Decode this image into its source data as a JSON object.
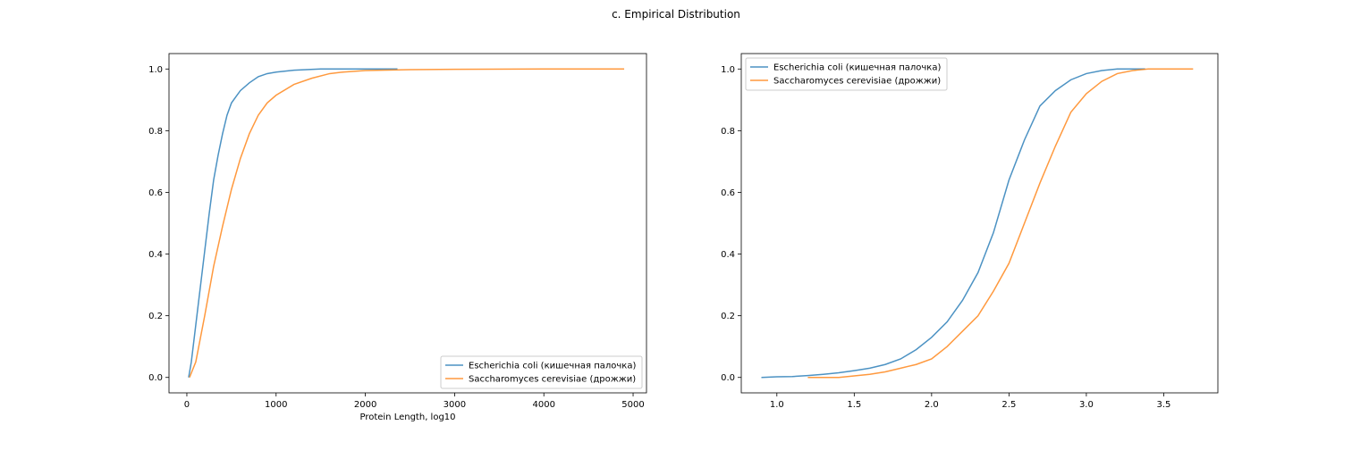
{
  "figure": {
    "title": "c. Empirical Distribution"
  },
  "colors": {
    "ecoli": "#1f77b4",
    "yeast": "#ff7f0e"
  },
  "chart_data": [
    {
      "type": "line",
      "xlabel": "Protein Length, log10",
      "ylabel": "",
      "xlim": [
        -200,
        5150
      ],
      "ylim": [
        -0.05,
        1.05
      ],
      "xticks": [
        0,
        1000,
        2000,
        3000,
        4000,
        5000
      ],
      "yticks": [
        0.0,
        0.2,
        0.4,
        0.6,
        0.8,
        1.0
      ],
      "grid": false,
      "legend_position": "lower-right",
      "series": [
        {
          "name": "Escherichia coli (кишечная палочка)",
          "color": "#1f77b4",
          "x": [
            20,
            50,
            100,
            150,
            200,
            250,
            300,
            350,
            400,
            450,
            500,
            550,
            600,
            700,
            800,
            900,
            1000,
            1200,
            1500,
            2000,
            2360
          ],
          "y": [
            0.0,
            0.05,
            0.17,
            0.29,
            0.41,
            0.53,
            0.64,
            0.72,
            0.79,
            0.85,
            0.89,
            0.91,
            0.93,
            0.955,
            0.975,
            0.985,
            0.99,
            0.996,
            1.0,
            1.0,
            1.0
          ]
        },
        {
          "name": "Saccharomyces cerevisiae (дрожжи)",
          "color": "#ff7f0e",
          "x": [
            30,
            100,
            200,
            300,
            400,
            500,
            600,
            700,
            800,
            900,
            1000,
            1200,
            1400,
            1600,
            1750,
            2000,
            2500,
            3000,
            4000,
            4900
          ],
          "y": [
            0.0,
            0.05,
            0.2,
            0.36,
            0.49,
            0.61,
            0.71,
            0.79,
            0.85,
            0.89,
            0.915,
            0.95,
            0.97,
            0.985,
            0.99,
            0.995,
            0.998,
            0.999,
            1.0,
            1.0
          ]
        }
      ]
    },
    {
      "type": "line",
      "xlabel": "",
      "ylabel": "",
      "xlim": [
        0.77,
        3.85
      ],
      "ylim": [
        -0.05,
        1.05
      ],
      "xticks": [
        1.0,
        1.5,
        2.0,
        2.5,
        3.0,
        3.5
      ],
      "yticks": [
        0.0,
        0.2,
        0.4,
        0.6,
        0.8,
        1.0
      ],
      "grid": false,
      "legend_position": "upper-left",
      "series": [
        {
          "name": "Escherichia coli (кишечная палочка)",
          "color": "#1f77b4",
          "x": [
            0.9,
            1.0,
            1.1,
            1.2,
            1.3,
            1.4,
            1.5,
            1.6,
            1.7,
            1.8,
            1.9,
            2.0,
            2.1,
            2.2,
            2.3,
            2.4,
            2.5,
            2.6,
            2.7,
            2.8,
            2.9,
            3.0,
            3.1,
            3.2,
            3.3,
            3.38
          ],
          "y": [
            0.0,
            0.002,
            0.003,
            0.006,
            0.01,
            0.015,
            0.022,
            0.03,
            0.042,
            0.06,
            0.09,
            0.13,
            0.18,
            0.25,
            0.34,
            0.47,
            0.64,
            0.77,
            0.88,
            0.93,
            0.965,
            0.985,
            0.995,
            1.0,
            1.0,
            1.0
          ]
        },
        {
          "name": "Saccharomyces cerevisiae (дрожжи)",
          "color": "#ff7f0e",
          "x": [
            1.2,
            1.3,
            1.4,
            1.5,
            1.6,
            1.7,
            1.8,
            1.9,
            2.0,
            2.1,
            2.2,
            2.3,
            2.4,
            2.5,
            2.6,
            2.7,
            2.8,
            2.9,
            3.0,
            3.1,
            3.2,
            3.3,
            3.4,
            3.5,
            3.6,
            3.69
          ],
          "y": [
            0.0,
            0.0,
            0.0,
            0.005,
            0.01,
            0.018,
            0.03,
            0.042,
            0.06,
            0.1,
            0.15,
            0.2,
            0.28,
            0.37,
            0.5,
            0.63,
            0.75,
            0.86,
            0.92,
            0.96,
            0.985,
            0.995,
            1.0,
            1.0,
            1.0,
            1.0
          ]
        }
      ]
    }
  ]
}
